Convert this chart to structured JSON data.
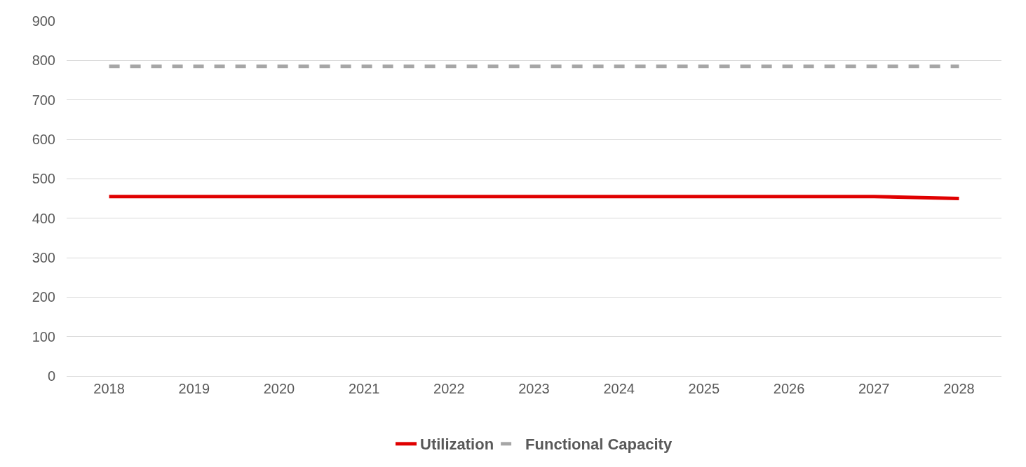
{
  "chart_data": {
    "type": "line",
    "categories": [
      "2018",
      "2019",
      "2020",
      "2021",
      "2022",
      "2023",
      "2024",
      "2025",
      "2026",
      "2027",
      "2028"
    ],
    "series": [
      {
        "name": "Utilization",
        "color": "#e00000",
        "line_style": "solid",
        "values": [
          455,
          455,
          455,
          455,
          455,
          455,
          455,
          455,
          455,
          455,
          450
        ]
      },
      {
        "name": "Functional Capacity",
        "color": "#a6a6a6",
        "line_style": "dashed",
        "values": [
          785,
          785,
          785,
          785,
          785,
          785,
          785,
          785,
          785,
          785,
          785
        ]
      }
    ],
    "ylim": [
      0,
      900
    ],
    "yticks": [
      0,
      100,
      200,
      300,
      400,
      500,
      600,
      700,
      800,
      900
    ],
    "grid": "y",
    "legend": "bottom",
    "marker": "none"
  }
}
